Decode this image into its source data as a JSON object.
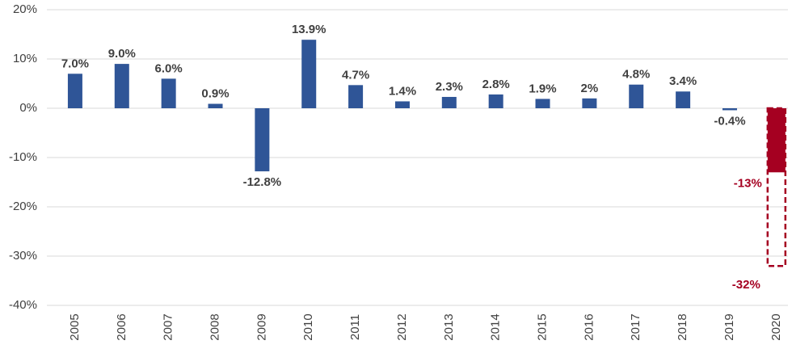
{
  "chart_data": {
    "type": "bar",
    "categories": [
      "2005",
      "2006",
      "2007",
      "2008",
      "2009",
      "2010",
      "2011",
      "2012",
      "2013",
      "2014",
      "2015",
      "2016",
      "2017",
      "2018",
      "2019",
      "2020"
    ],
    "values": [
      7.0,
      9.0,
      6.0,
      0.9,
      -12.8,
      13.9,
      4.7,
      1.4,
      2.3,
      2.8,
      1.9,
      2,
      4.8,
      3.4,
      -0.4,
      -13
    ],
    "value_labels": [
      "7.0%",
      "9.0%",
      "6.0%",
      "0.9%",
      "-12.8%",
      "13.9%",
      "4.7%",
      "1.4%",
      "2.3%",
      "2.8%",
      "1.9%",
      "2%",
      "4.8%",
      "3.4%",
      "-0.4%",
      "-13%"
    ],
    "downside_values": [
      null,
      null,
      null,
      null,
      null,
      null,
      null,
      null,
      null,
      null,
      null,
      null,
      null,
      null,
      null,
      -32
    ],
    "downside_value_labels": [
      null,
      null,
      null,
      null,
      null,
      null,
      null,
      null,
      null,
      null,
      null,
      null,
      null,
      null,
      null,
      "-32%"
    ],
    "color": "#2f5597",
    "highlight_color": "#a50021",
    "ylim": [
      -40,
      20
    ],
    "yticks": [
      {
        "value": -40,
        "label": "-40%"
      },
      {
        "value": -30,
        "label": "-30%"
      },
      {
        "value": -20,
        "label": "-20%"
      },
      {
        "value": -10,
        "label": "-10%"
      },
      {
        "value": 0,
        "label": "0%"
      },
      {
        "value": 10,
        "label": "10%"
      },
      {
        "value": 20,
        "label": "20%"
      }
    ],
    "grid": true
  }
}
